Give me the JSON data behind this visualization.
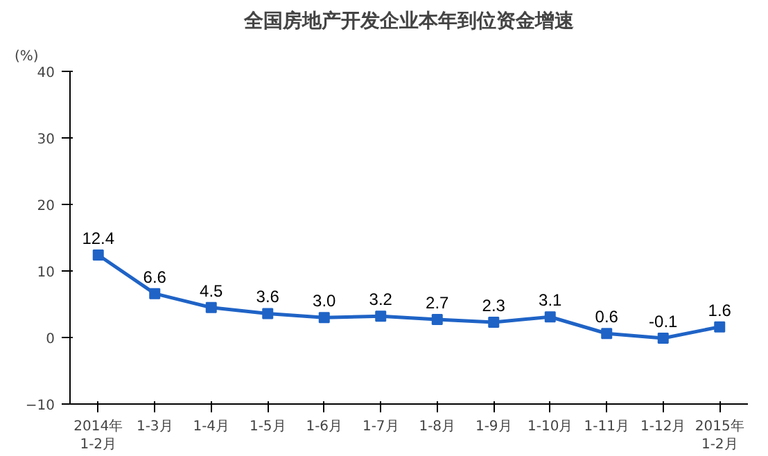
{
  "chart_data": {
    "type": "line",
    "title": "全国房地产开发企业本年到位资金增速",
    "ylabel": "(%)",
    "categories": [
      "2014年\n1-2月",
      "1-3月",
      "1-4月",
      "1-5月",
      "1-6月",
      "1-7月",
      "1-8月",
      "1-9月",
      "1-10月",
      "1-11月",
      "1-12月",
      "2015年\n1-2月"
    ],
    "series": [
      {
        "color": "#1f63c6",
        "values": [
          12.4,
          6.6,
          4.5,
          3.6,
          3.0,
          3.2,
          2.7,
          2.3,
          3.1,
          0.6,
          -0.1,
          1.6
        ]
      }
    ],
    "ylim": [
      -10,
      40
    ],
    "yticks": [
      -10,
      0,
      10,
      20,
      30,
      40
    ],
    "value_labels": [
      "12.4",
      "6.6",
      "4.5",
      "3.6",
      "3.0",
      "3.2",
      "2.7",
      "2.3",
      "3.1",
      "0.6",
      "-0.1",
      "1.6"
    ],
    "marker": "square",
    "line_style": "solid",
    "grid": false
  }
}
